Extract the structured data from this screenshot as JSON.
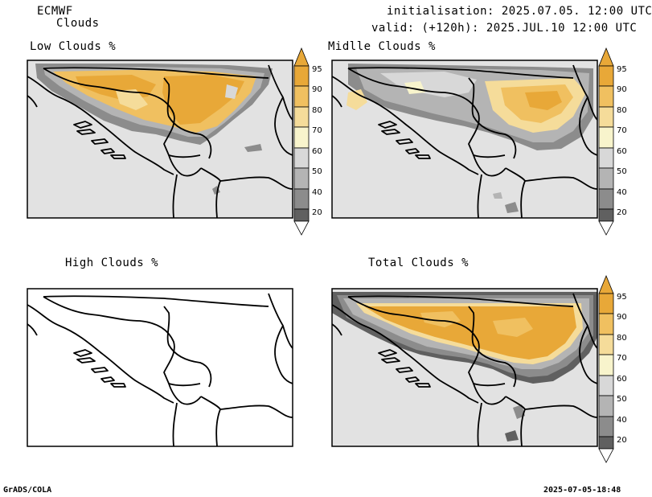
{
  "header": {
    "model": "ECMWF",
    "field": "Clouds",
    "init": "initialisation: 2025.07.05. 12:00 UTC",
    "valid": "valid: (+120h): 2025.JUL.10 12:00 UTC"
  },
  "panels": {
    "low": {
      "title": "Low Clouds %"
    },
    "mid": {
      "title": "Midlle Clouds %"
    },
    "high": {
      "title": "High Clouds %"
    },
    "total": {
      "title": "Total Clouds %"
    }
  },
  "colorbar": {
    "ticks": [
      "95",
      "90",
      "80",
      "70",
      "60",
      "50",
      "40",
      "20"
    ],
    "colors": {
      "95": "#e8a838",
      "90": "#f0c060",
      "80": "#f5dc9a",
      "70": "#f8f4cc",
      "60": "#d8d8d8",
      "50": "#b4b4b4",
      "40": "#8c8c8c",
      "20": "#606060",
      "low": "#ffffff",
      "background": "#e2e2e2"
    }
  },
  "footer": {
    "left": "GrADS/COLA",
    "right": "2025-07-05-18:48"
  }
}
